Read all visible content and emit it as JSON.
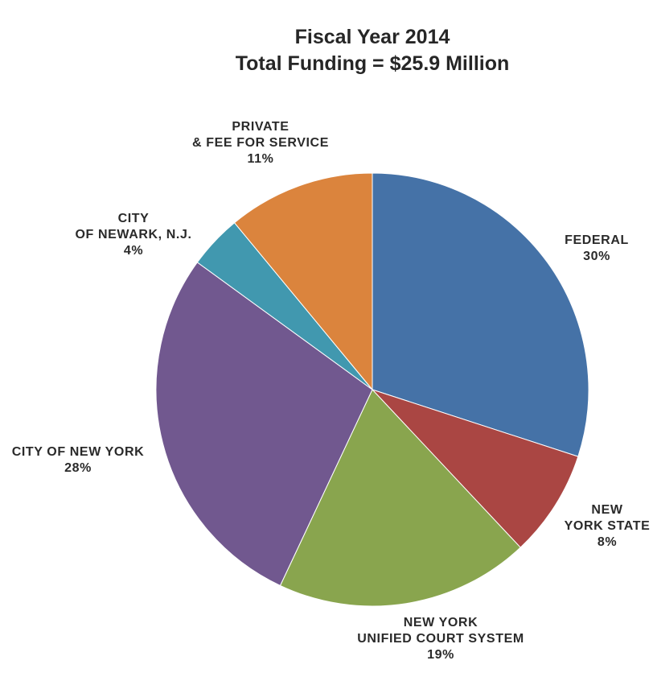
{
  "chart_data": {
    "type": "pie",
    "title": [
      "Fiscal Year 2014",
      "Total Funding = $25.9 Million"
    ],
    "slices": [
      {
        "label": [
          "FEDERAL"
        ],
        "value": 30,
        "value_label": "30%",
        "color": "#4572a7"
      },
      {
        "label": [
          "NEW",
          "YORK STATE"
        ],
        "value": 8,
        "value_label": "8%",
        "color": "#aa4643"
      },
      {
        "label": [
          "NEW YORK",
          "UNIFIED COURT SYSTEM"
        ],
        "value": 19,
        "value_label": "19%",
        "color": "#89a54e"
      },
      {
        "label": [
          "CITY OF NEW YORK"
        ],
        "value": 28,
        "value_label": "28%",
        "color": "#71588f"
      },
      {
        "label": [
          "CITY",
          "OF NEWARK, N.J."
        ],
        "value": 4,
        "value_label": "4%",
        "color": "#4198af"
      },
      {
        "label": [
          "PRIVATE",
          "& FEE FOR SERVICE"
        ],
        "value": 11,
        "value_label": "11%",
        "color": "#db843d"
      }
    ],
    "start_angle": "12 o'clock",
    "direction": "clockwise",
    "legend": "none"
  }
}
